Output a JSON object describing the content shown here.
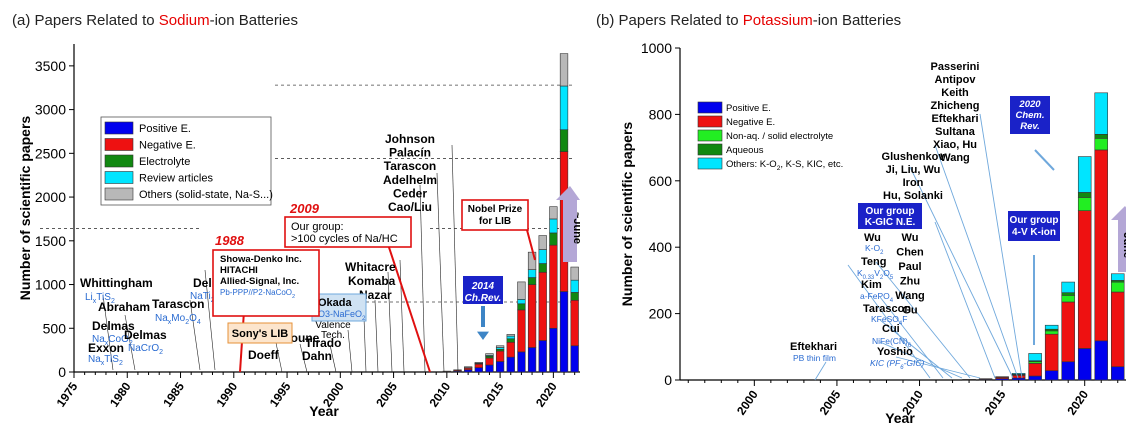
{
  "colors": {
    "positive": "#0000ee",
    "negative": "#ee1111",
    "electrolyte": "#118811",
    "review": "#00e5ff",
    "others": "#b8b8b8",
    "nonaq": "#22ee22",
    "aqueous": "#118811",
    "label_blue": "#2a6bd1",
    "annotation_red": "#e01010",
    "arrow_lavender": "#b4a7d6"
  },
  "chart_data": [
    {
      "type": "bar",
      "stacked": true,
      "panel_title_prefix": "(a) Papers Related to ",
      "panel_title_highlight": "Sodium",
      "panel_title_suffix": "-ion Batteries",
      "xlabel": "Year",
      "ylabel": "Number of scientific papers",
      "xlim": [
        1975,
        2022.5
      ],
      "ylim": [
        0,
        3750
      ],
      "xticks": [
        "1975",
        "1980",
        "1985",
        "1990",
        "1995",
        "2000",
        "2005",
        "2010",
        "2015",
        "2020"
      ],
      "yticks": [
        "0",
        "500",
        "1000",
        "1500",
        "2000",
        "2500",
        "3000",
        "3500"
      ],
      "x": [
        2010,
        2011,
        2012,
        2013,
        2014,
        2015,
        2016,
        2017,
        2018,
        2019,
        2020,
        2021,
        2022
      ],
      "series": [
        {
          "name": "Positive E.",
          "values": [
            5,
            10,
            25,
            50,
            80,
            120,
            170,
            230,
            280,
            360,
            500,
            920,
            300
          ]
        },
        {
          "name": "Negative E.",
          "values": [
            5,
            10,
            20,
            40,
            80,
            120,
            170,
            480,
            720,
            780,
            950,
            1600,
            520
          ]
        },
        {
          "name": "Electrolyte",
          "values": [
            0,
            0,
            5,
            5,
            20,
            20,
            40,
            70,
            80,
            100,
            140,
            250,
            90
          ]
        },
        {
          "name": "Review articles",
          "values": [
            0,
            0,
            0,
            5,
            10,
            20,
            30,
            50,
            90,
            160,
            160,
            500,
            140
          ]
        },
        {
          "name": "Others (solid-state, Na-S...)",
          "values": [
            0,
            5,
            10,
            10,
            20,
            20,
            20,
            200,
            200,
            160,
            140,
            370,
            150
          ]
        }
      ],
      "dashed_lines": [
        3280,
        2440,
        1640
      ],
      "annotations": {
        "year_1988": "1988",
        "box_1988": [
          "Showa-Denko Inc.",
          "HITACHI",
          "Allied-Signal, Inc.",
          "Pb-PPP//P2-Na",
          "CoO",
          "2"
        ],
        "year_2009": "2009",
        "box_2009": [
          "Our group:",
          ">100 cycles of Na/HC"
        ],
        "nobel": [
          "Nobel Prize",
          "for LIB"
        ],
        "ch_rev": [
          "2014",
          "Ch.Rev."
        ],
        "june": "~June",
        "sony": "Sony's LIB",
        "okada": [
          "Okada",
          "O3-NaFeO",
          "2"
        ],
        "valence": [
          "Valence",
          "Tech."
        ],
        "names": {
          "whittingham": "Whittingham",
          "abraham": "Abraham",
          "delmas1": "Delmas",
          "exxon": "Exxon",
          "delmas2": "Delmas",
          "tarascon": "Tarascon",
          "delmas3": "Delmas",
          "doeff": "Doeff",
          "saadoune": "Saadoune",
          "tirado": "Tirado",
          "dahn": "Dahn",
          "whitacre": "Whitacre",
          "komaba": "Komaba",
          "nazar": "Nazar",
          "johnson_group": [
            "Johnson",
            "Palacín",
            "Tarascon",
            "Adelhelm",
            "Ceder",
            "Cao/Liu"
          ]
        },
        "formulas": {
          "lits2": [
            "Li",
            "x",
            "TiS",
            "2"
          ],
          "naxcoo2": [
            "Na",
            "x",
            "CoO",
            "2"
          ],
          "natis2": [
            "Na",
            "x",
            "TiS",
            "2"
          ],
          "nacro2": "NaCrO",
          "nacro2_sub": "2",
          "naxmoo4": [
            "Na",
            "x",
            "Mo",
            "2",
            "O",
            "4"
          ],
          "nati2po4": [
            "NaTi",
            "2",
            "(PO",
            "4",
            ")",
            "3"
          ]
        }
      }
    },
    {
      "type": "bar",
      "stacked": true,
      "panel_title_prefix": "(b) Papers Related to ",
      "panel_title_highlight": "Potassium",
      "panel_title_suffix": "-ion Batteries",
      "xlabel": "Year",
      "ylabel": "Number of scientific papers",
      "xlim": [
        1995.5,
        2022.5
      ],
      "ylim": [
        0,
        1000
      ],
      "xticks": [
        "2000",
        "2005",
        "2010",
        "2015",
        "2020"
      ],
      "yticks": [
        "0",
        "200",
        "400",
        "600",
        "800",
        "1000"
      ],
      "x": [
        2013,
        2014,
        2015,
        2016,
        2017,
        2018,
        2019,
        2020,
        2021,
        2022
      ],
      "series": [
        {
          "name": "Positive E.",
          "values": [
            1,
            2,
            4,
            6,
            12,
            28,
            55,
            95,
            118,
            40
          ]
        },
        {
          "name": "Negative E.",
          "values": [
            1,
            2,
            4,
            8,
            38,
            110,
            180,
            415,
            575,
            225
          ]
        },
        {
          "name": "Non-aq. / solid electrolyte",
          "values": [
            0,
            0,
            1,
            2,
            5,
            10,
            20,
            40,
            35,
            30
          ]
        },
        {
          "name": "Aqueous",
          "values": [
            0,
            0,
            0,
            1,
            3,
            5,
            8,
            15,
            12,
            5
          ]
        },
        {
          "name": "Others: K-O2, K-S, KIC, etc.",
          "legend_parts": [
            "Others: K-O",
            "2",
            ", K-S, KIC, etc."
          ],
          "values": [
            0,
            0,
            1,
            3,
            22,
            12,
            32,
            108,
            125,
            20
          ]
        }
      ],
      "annotations": {
        "rev_2020": [
          "2020",
          "Chem.",
          "Rev."
        ],
        "kgic": [
          "Our group",
          "K-GIC N.E."
        ],
        "k4v": [
          "Our group",
          "4-V K-ion"
        ],
        "june": "~June",
        "eftekhari": "Eftekhari",
        "pb_film": "PB thin film",
        "top_group": [
          "Passerini",
          "Antipov",
          "Keith",
          "Zhicheng",
          "Eftekhari",
          "Sultana",
          "Xiao, Hu",
          "Wang"
        ],
        "mid_group": [
          "Glushenkov",
          "Ji, Liu, Wu",
          "Iron",
          "Hu, Solanki"
        ],
        "wu_right": [
          "Wu",
          "Chen",
          "Paul",
          "Zhu",
          "Wang",
          "Gu"
        ],
        "wu": "Wu",
        "ko2": [
          "K-O",
          "2"
        ],
        "teng": "Teng",
        "teng_formula": [
          "K",
          "0.33",
          "V",
          "2",
          "O",
          "5"
        ],
        "kim": "Kim",
        "kim_formula": [
          "a-FePO",
          "4"
        ],
        "tarascon": "Tarascon",
        "tarascon_formula": [
          "KFeSO",
          "4",
          "F"
        ],
        "cui": "Cui",
        "cui_formula": [
          "NiFe(CN)",
          "6"
        ],
        "yoshio": "Yoshio",
        "yoshio_formula": [
          "KIC (PF",
          "6",
          "-GIC)"
        ]
      }
    }
  ]
}
